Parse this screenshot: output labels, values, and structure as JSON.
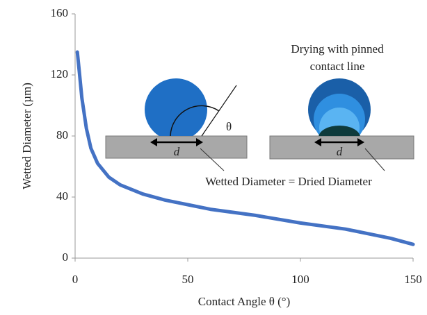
{
  "chart_data": {
    "type": "line",
    "xlabel": "Contact Angle θ (°)",
    "ylabel": "Wetted Diameter (µm)",
    "x": [
      1,
      2,
      3,
      5,
      7,
      10,
      15,
      20,
      30,
      40,
      50,
      60,
      80,
      100,
      120,
      140,
      150
    ],
    "values": [
      135,
      120,
      105,
      85,
      72,
      62,
      53,
      48,
      42,
      38,
      35,
      32,
      28,
      23,
      19,
      13,
      9
    ],
    "color": "#4472c4",
    "xlim": [
      0,
      150
    ],
    "xticks": [
      0,
      50,
      100,
      150
    ],
    "ylim": [
      0,
      160
    ],
    "yticks": [
      0,
      40,
      80,
      120,
      160
    ],
    "grid": false,
    "annotations": [
      "θ",
      "d",
      "d",
      "Drying with pinned",
      "contact line",
      "Wetted Diameter = Dried Diameter"
    ]
  }
}
